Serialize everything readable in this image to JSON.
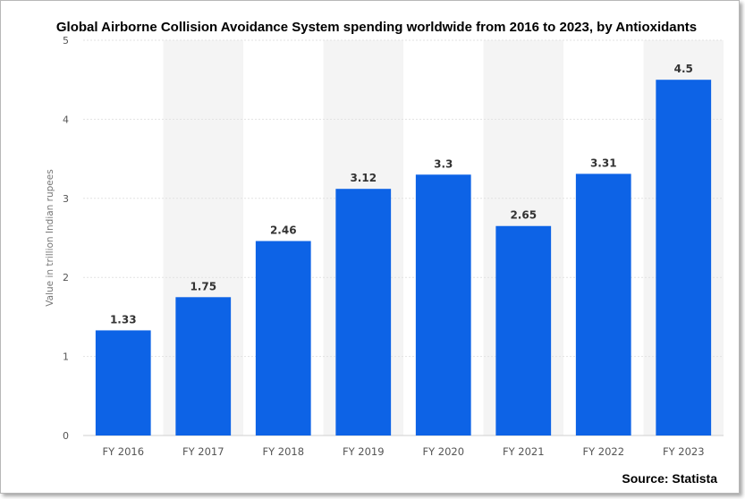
{
  "chart_data": {
    "type": "bar",
    "title": "Global Airborne Collision Avoidance System spending worldwide from 2016 to 2023, by Antioxidants",
    "xlabel": "",
    "ylabel": "Value in trillion Indian rupees",
    "categories": [
      "FY 2016",
      "FY 2017",
      "FY 2018",
      "FY 2019",
      "FY 2020",
      "FY 2021",
      "FY 2022",
      "FY 2023"
    ],
    "values": [
      1.33,
      1.75,
      2.46,
      3.12,
      3.3,
      2.65,
      3.31,
      4.5
    ],
    "value_labels": [
      "1.33",
      "1.75",
      "2.46",
      "3.12",
      "3.3",
      "2.65",
      "3.31",
      "4.5"
    ],
    "ylim": [
      0,
      5
    ],
    "yticks": [
      0,
      1,
      2,
      3,
      4,
      5
    ],
    "grid": true,
    "bar_color": "#0d63e6",
    "band_color": "#f4f4f4",
    "source": "Source: Statista"
  }
}
